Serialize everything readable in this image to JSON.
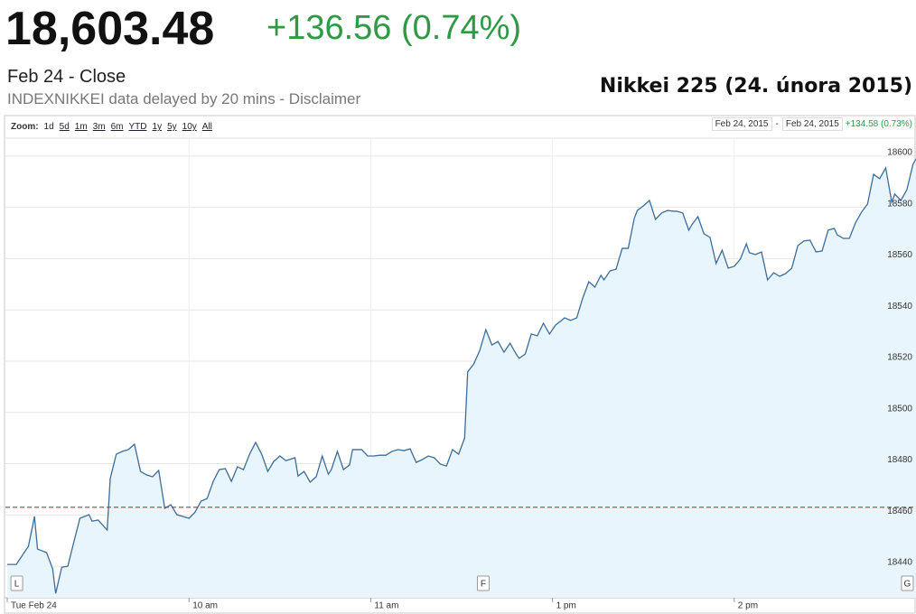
{
  "header": {
    "price": "18,603.48",
    "change": "+136.56 (0.74%)",
    "close_label": "Feb 24 - Close",
    "source": "INDEXNIKKEI data delayed by 20 mins - Disclaimer",
    "title": "Nikkei 225 (24. února 2015)"
  },
  "toolbar": {
    "zoom_label": "Zoom:",
    "zoom_options": [
      "1d",
      "5d",
      "1m",
      "3m",
      "6m",
      "YTD",
      "1y",
      "5y",
      "10y",
      "All"
    ],
    "zoom_selected": 0,
    "range_start": "Feb 24, 2015",
    "range_sep": "-",
    "range_end": "Feb 24, 2015",
    "range_change": "+134.58 (0.73%)"
  },
  "chart_data": {
    "type": "line",
    "x": [
      0,
      3,
      4,
      7,
      9,
      10,
      13,
      15,
      16,
      18,
      20,
      22,
      24,
      27,
      28,
      30,
      33,
      34,
      36,
      38,
      40,
      42,
      44,
      46,
      48,
      50,
      52,
      54,
      56,
      58,
      60,
      62,
      64,
      66,
      68,
      70,
      72,
      74,
      76,
      78,
      80,
      82,
      84,
      86,
      88,
      90,
      92,
      95,
      96,
      98,
      100,
      102,
      104,
      106,
      107,
      109,
      111,
      113,
      114,
      117,
      119,
      121,
      123,
      125,
      127,
      129,
      131,
      133,
      135,
      137,
      139,
      141,
      143,
      145,
      147,
      149,
      151,
      152,
      154,
      156,
      158,
      160,
      162,
      164,
      166,
      168,
      169,
      171,
      173,
      175,
      177,
      179,
      181,
      183,
      184,
      186,
      188,
      190,
      192,
      194,
      196,
      197,
      199,
      201,
      203,
      205,
      207,
      208,
      210,
      212,
      214,
      216,
      218,
      220,
      221,
      223,
      225,
      226,
      228,
      230,
      232,
      234,
      236,
      238,
      240,
      242,
      244,
      245,
      247,
      249,
      251,
      253,
      255,
      257,
      259,
      261,
      263,
      265,
      267,
      269,
      271,
      273,
      274,
      276,
      278,
      280,
      282,
      284,
      286,
      288,
      290,
      292,
      293,
      295,
      297,
      299,
      300
    ],
    "series": [
      {
        "color": "#3d6d99",
        "values": [
          18440.7,
          18440.7,
          18442.5,
          18447.8,
          18459.4,
          18446.7,
          18445.3,
          18438.9,
          18429.4,
          18439.6,
          18440,
          18449.5,
          18458.7,
          18460.1,
          18457.6,
          18458.0,
          18454.1,
          18474.2,
          18483.7,
          18484.8,
          18485.5,
          18487.6,
          18477.0,
          18475.6,
          18474.9,
          18477.4,
          18462.6,
          18464.0,
          18460.1,
          18459.4,
          18458.7,
          18461.1,
          18465.4,
          18466.4,
          18473.1,
          18477.7,
          18478.1,
          18473.1,
          18478.8,
          18477.7,
          18483.7,
          18488.3,
          18483.7,
          18477.0,
          18480.9,
          18483.0,
          18481.2,
          18482.3,
          18475.2,
          18477.0,
          18472.8,
          18474.9,
          18483.0,
          18475.9,
          18477.7,
          18484.8,
          18477.7,
          18479.5,
          18485.5,
          18485.5,
          18483.0,
          18483.0,
          18483.3,
          18483.3,
          18484.8,
          18485.5,
          18485.1,
          18485.8,
          18480.5,
          18481.6,
          18483.0,
          18482.3,
          18479.8,
          18479.1,
          18485.5,
          18483.7,
          18490.0,
          18515.8,
          18518.9,
          18524.2,
          18532.3,
          18526.3,
          18527.7,
          18523.5,
          18527.0,
          18522.8,
          18521.1,
          18522.8,
          18530.6,
          18529.9,
          18534.8,
          18530.6,
          18534.1,
          18535.9,
          18536.9,
          18535.9,
          18536.9,
          18544.7,
          18551.0,
          18548.9,
          18553.5,
          18551.7,
          18555.2,
          18555.9,
          18564.0,
          18564.0,
          18575.7,
          18578.8,
          18580.6,
          18582.7,
          18575.3,
          18577.8,
          18578.8,
          18578.5,
          18578.5,
          18577.8,
          18571.1,
          18573.2,
          18576.4,
          18569.7,
          18568.3,
          18558.1,
          18563.3,
          18556.3,
          18557.0,
          18559.8,
          18565.8,
          18562.3,
          18561.6,
          18562.6,
          18551.7,
          18554.5,
          18553.1,
          18554.2,
          18556.3,
          18565.1,
          18566.9,
          18567.2,
          18562.6,
          18563.0,
          18571.1,
          18571.8,
          18569.3,
          18567.9,
          18567.9,
          18573.9,
          18578.1,
          18581.3,
          18592.9,
          18591.2,
          18595.4,
          18582.0,
          18585.2,
          18582.7,
          18586.9,
          18596.8,
          18598.9
        ]
      }
    ],
    "fill_color": "#e9f5fc",
    "xlim": [
      0,
      300
    ],
    "ylim": [
      18427.7,
      18606.3
    ],
    "xticks": [
      {
        "value": 0,
        "label": "Tue Feb 24"
      },
      {
        "value": 60,
        "label": "10 am"
      },
      {
        "value": 120,
        "label": "11 am"
      },
      {
        "value": 180,
        "label": "1 pm"
      },
      {
        "value": 240,
        "label": "2 pm"
      }
    ],
    "yticks": [
      18440,
      18460,
      18480,
      18500,
      18520,
      18540,
      18560,
      18580,
      18600
    ],
    "grid": true,
    "reference_line": {
      "value": 18463,
      "color": "#a33a3a"
    },
    "flags": [
      {
        "x": 3,
        "label": "L"
      },
      {
        "x": 157,
        "label": "F"
      },
      {
        "x": 297,
        "label": "G"
      }
    ]
  }
}
